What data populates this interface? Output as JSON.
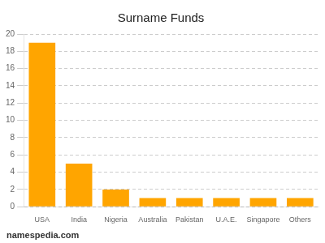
{
  "chart_data": {
    "type": "bar",
    "title": "Surname Funds",
    "categories": [
      "USA",
      "India",
      "Nigeria",
      "Australia",
      "Pakistan",
      "U.A.E.",
      "Singapore",
      "Others"
    ],
    "values": [
      19,
      5,
      2,
      1,
      1,
      1,
      1,
      1
    ],
    "color": "#FFA500",
    "ylim": [
      0,
      20
    ],
    "yticks": [
      0,
      2,
      4,
      6,
      8,
      10,
      12,
      14,
      16,
      18,
      20
    ],
    "grid": true,
    "annotations": [
      "namespedia.com"
    ]
  }
}
